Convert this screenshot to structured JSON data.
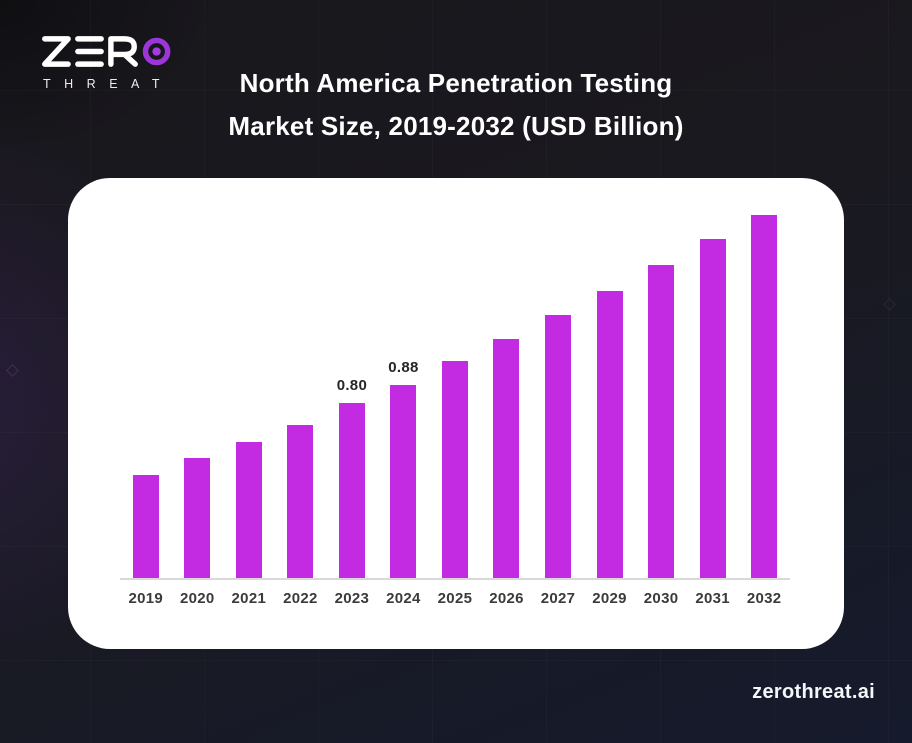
{
  "brand": {
    "logo_text_top": "ZERO",
    "logo_text_bottom": "THREAT",
    "logo_ring_color": "#9C36DB"
  },
  "header": {
    "title_line1": "North America Penetration Testing",
    "title_line2": "Market Size, 2019-2032 (USD Billion)"
  },
  "footer": {
    "website": "zerothreat.ai"
  },
  "colors": {
    "bar": "#C32BE2",
    "card_bg": "#FFFFFF",
    "page_bg_top": "#18171C",
    "page_bg_bottom": "#151A2C",
    "axis_line": "#D9D9D9",
    "axis_label": "#3B3B3B",
    "value_label": "#262626",
    "title_text": "#FFFFFF"
  },
  "chart_data": {
    "type": "bar",
    "title": "North America Penetration Testing Market Size, 2019-2032 (USD Billion)",
    "unit": "USD Billion",
    "categories": [
      "2019",
      "2020",
      "2021",
      "2022",
      "2023",
      "2024",
      "2025",
      "2026",
      "2027",
      "2029",
      "2030",
      "2031",
      "2032"
    ],
    "values": [
      0.47,
      0.55,
      0.62,
      0.7,
      0.8,
      0.88,
      0.99,
      1.09,
      1.2,
      1.31,
      1.43,
      1.55,
      1.66
    ],
    "bar_labels": [
      "",
      "",
      "",
      "",
      "0.80",
      "0.88",
      "",
      "",
      "",
      "",
      "",
      "",
      ""
    ],
    "xlabel": "",
    "ylabel": "",
    "ylim": [
      0,
      1.75
    ],
    "grid": false,
    "legend": false,
    "bar_color": "#C32BE2",
    "baseline_color": "#D9D9D9"
  }
}
